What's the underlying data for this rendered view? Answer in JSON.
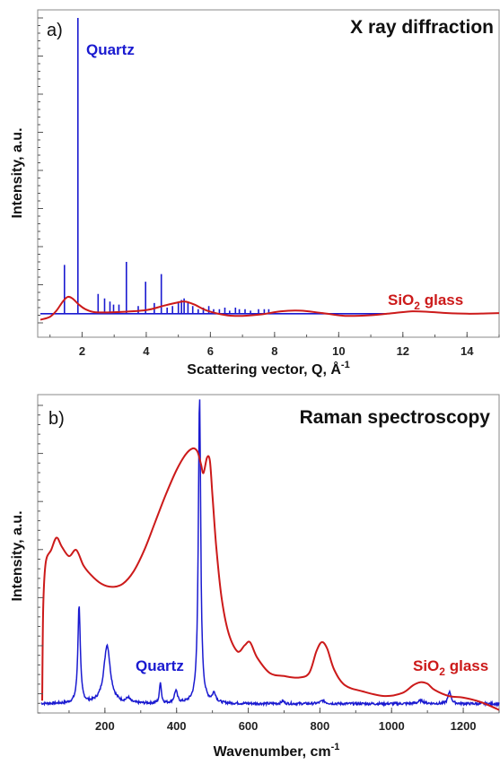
{
  "colors": {
    "quartz": "#1a1ad0",
    "glass": "#cc1a1a"
  },
  "chart_data": [
    {
      "type": "line",
      "panel": "a)",
      "title": "X ray diffraction",
      "xlabel": "Scattering vector, Q, Å",
      "xlabel_sup": "-1",
      "ylabel": "Intensity, a.u.",
      "xlim": [
        0.7,
        15
      ],
      "ylim": [
        0,
        100
      ],
      "xticks": [
        2,
        4,
        6,
        8,
        10,
        12,
        14
      ],
      "annotations": [
        {
          "text": "Quartz",
          "series": "quartz",
          "anchor": "top"
        },
        {
          "text": "SiO",
          "sub": "2",
          "rest": " glass",
          "series": "glass",
          "anchor": "right"
        }
      ],
      "series": [
        {
          "key": "quartz",
          "style": "sticks",
          "baseline": 3,
          "baseline_range": [
            0.7,
            11.5
          ],
          "peaks": [
            [
              1.45,
              19
            ],
            [
              1.87,
              100
            ],
            [
              2.5,
              9.5
            ],
            [
              2.7,
              8
            ],
            [
              2.87,
              7
            ],
            [
              2.98,
              6
            ],
            [
              3.15,
              6
            ],
            [
              3.38,
              20
            ],
            [
              3.75,
              5.5
            ],
            [
              3.98,
              13.5
            ],
            [
              4.25,
              6.5
            ],
            [
              4.47,
              16
            ],
            [
              4.65,
              5
            ],
            [
              4.82,
              5.5
            ],
            [
              5.0,
              6.5
            ],
            [
              5.1,
              7.5
            ],
            [
              5.18,
              8
            ],
            [
              5.3,
              6.5
            ],
            [
              5.45,
              5.5
            ],
            [
              5.62,
              4.5
            ],
            [
              5.78,
              5
            ],
            [
              5.95,
              5.5
            ],
            [
              6.1,
              4.5
            ],
            [
              6.28,
              4.5
            ],
            [
              6.45,
              5
            ],
            [
              6.6,
              4
            ],
            [
              6.78,
              5
            ],
            [
              6.9,
              4.5
            ],
            [
              7.08,
              4.5
            ],
            [
              7.25,
              4
            ],
            [
              7.5,
              4.5
            ],
            [
              7.68,
              4.5
            ],
            [
              7.82,
              4.5
            ]
          ]
        },
        {
          "key": "glass",
          "style": "line",
          "points": [
            [
              0.7,
              1
            ],
            [
              1.0,
              2
            ],
            [
              1.2,
              4
            ],
            [
              1.4,
              7
            ],
            [
              1.55,
              8.5
            ],
            [
              1.7,
              8
            ],
            [
              1.9,
              6
            ],
            [
              2.1,
              4.5
            ],
            [
              2.4,
              3.5
            ],
            [
              3.0,
              3.5
            ],
            [
              4.0,
              4.2
            ],
            [
              4.5,
              5.5
            ],
            [
              4.9,
              6.5
            ],
            [
              5.2,
              7
            ],
            [
              5.5,
              6
            ],
            [
              5.9,
              4
            ],
            [
              6.5,
              2.5
            ],
            [
              7.0,
              2.3
            ],
            [
              7.6,
              2.8
            ],
            [
              8.2,
              3.8
            ],
            [
              8.8,
              4
            ],
            [
              9.5,
              3.2
            ],
            [
              10.2,
              2.3
            ],
            [
              11.0,
              2.5
            ],
            [
              11.7,
              3.2
            ],
            [
              12.3,
              3.8
            ],
            [
              12.8,
              3.6
            ],
            [
              13.4,
              3.2
            ],
            [
              14.0,
              3.0
            ],
            [
              14.6,
              3.1
            ],
            [
              15.0,
              3.2
            ]
          ]
        }
      ]
    },
    {
      "type": "line",
      "panel": "b)",
      "title": "Raman spectroscopy",
      "xlabel": "Wavenumber, cm",
      "xlabel_sup": "-1",
      "ylabel": "Intensity, a.u.",
      "xlim": [
        20,
        1300
      ],
      "ylim": [
        0,
        100
      ],
      "xticks": [
        200,
        400,
        600,
        800,
        1000,
        1200
      ],
      "annotations": [
        {
          "text": "Quartz",
          "series": "quartz",
          "anchor": "middle"
        },
        {
          "text": "SiO",
          "sub": "2",
          "rest": " glass",
          "series": "glass",
          "anchor": "right"
        }
      ],
      "series": [
        {
          "key": "quartz",
          "style": "peaks",
          "baseline": 3,
          "peaks": [
            [
              128,
              32,
              4
            ],
            [
              206,
              19,
              11
            ],
            [
              265,
              1.5,
              6
            ],
            [
              355,
              7,
              3
            ],
            [
              398,
              4,
              5
            ],
            [
              464,
              100,
              4
            ],
            [
              505,
              3,
              6
            ],
            [
              696,
              1,
              4
            ],
            [
              808,
              1,
              8
            ],
            [
              1082,
              1,
              10
            ],
            [
              1162,
              4,
              5
            ]
          ]
        },
        {
          "key": "glass",
          "style": "line",
          "points": [
            [
              25,
              4
            ],
            [
              28,
              35
            ],
            [
              35,
              49
            ],
            [
              50,
              53
            ],
            [
              65,
              57
            ],
            [
              80,
              54
            ],
            [
              100,
              51
            ],
            [
              120,
              53
            ],
            [
              140,
              48
            ],
            [
              160,
              45
            ],
            [
              190,
              42
            ],
            [
              220,
              41
            ],
            [
              250,
              42
            ],
            [
              280,
              46
            ],
            [
              310,
              53
            ],
            [
              340,
              62
            ],
            [
              370,
              71
            ],
            [
              400,
              79
            ],
            [
              425,
              84
            ],
            [
              445,
              86
            ],
            [
              458,
              85
            ],
            [
              468,
              81
            ],
            [
              475,
              78
            ],
            [
              485,
              83
            ],
            [
              493,
              82
            ],
            [
              500,
              71
            ],
            [
              510,
              55
            ],
            [
              525,
              38
            ],
            [
              545,
              26
            ],
            [
              570,
              20
            ],
            [
              590,
              22
            ],
            [
              605,
              23
            ],
            [
              625,
              18
            ],
            [
              660,
              13
            ],
            [
              700,
              12
            ],
            [
              740,
              11.5
            ],
            [
              770,
              13
            ],
            [
              790,
              20
            ],
            [
              805,
              23
            ],
            [
              820,
              21
            ],
            [
              840,
              14
            ],
            [
              870,
              9
            ],
            [
              920,
              7
            ],
            [
              980,
              5.5
            ],
            [
              1030,
              6.5
            ],
            [
              1060,
              9
            ],
            [
              1080,
              10
            ],
            [
              1100,
              9.5
            ],
            [
              1120,
              7.5
            ],
            [
              1160,
              5.5
            ],
            [
              1200,
              5
            ],
            [
              1250,
              3.5
            ],
            [
              1300,
              1
            ]
          ]
        }
      ]
    }
  ]
}
